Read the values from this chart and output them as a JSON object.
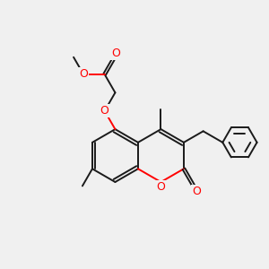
{
  "bg_color": "#f0f0f0",
  "bond_color": "#1a1a1a",
  "o_color": "#ff0000",
  "line_width": 1.4,
  "fig_size": [
    3.0,
    3.0
  ],
  "dpi": 100,
  "xlim": [
    0,
    10
  ],
  "ylim": [
    0,
    10
  ]
}
